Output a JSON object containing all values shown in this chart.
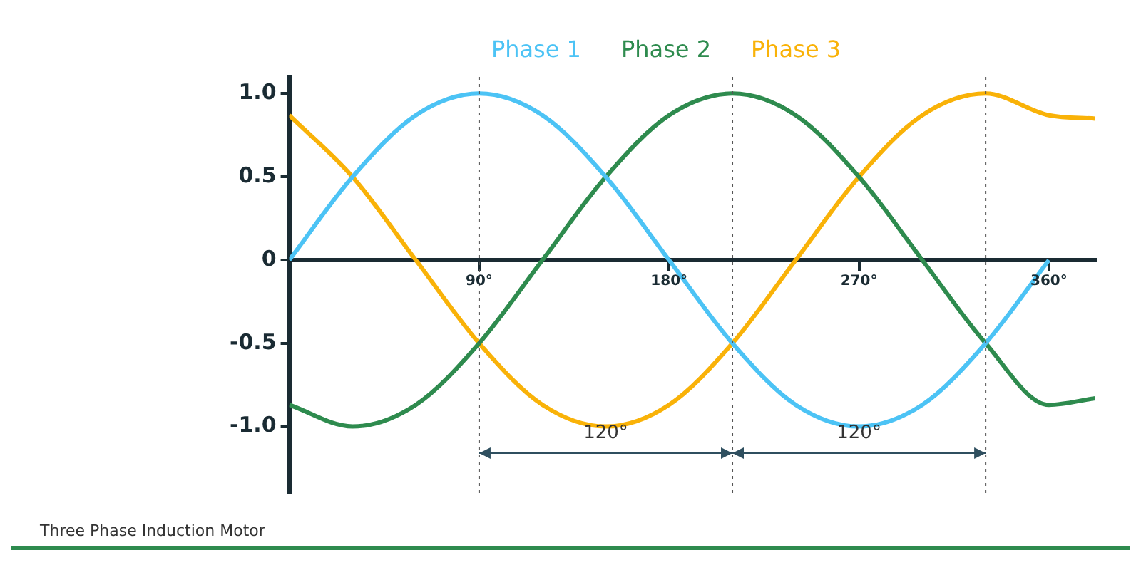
{
  "chart_data": {
    "type": "line",
    "x": [
      0,
      30,
      60,
      90,
      120,
      150,
      180,
      210,
      240,
      270,
      300,
      330,
      360
    ],
    "series": [
      {
        "name": "Phase 1",
        "color": "#4cc3f5",
        "values": [
          0,
          0.5,
          0.87,
          1,
          0.87,
          0.5,
          0,
          -0.5,
          -0.87,
          -1,
          -0.87,
          -0.5,
          0
        ]
      },
      {
        "name": "Phase 2",
        "color": "#2e8b4e",
        "x": [
          0,
          30,
          60,
          90,
          120,
          150,
          180,
          210,
          240,
          270,
          300,
          330,
          360,
          382
        ],
        "values": [
          -0.87,
          -1,
          -0.87,
          -0.5,
          0,
          0.5,
          0.87,
          1,
          0.87,
          0.5,
          0,
          -0.5,
          -0.87,
          -0.83
        ]
      },
      {
        "name": "Phase 3",
        "color": "#f9b208",
        "x": [
          0,
          30,
          60,
          90,
          120,
          150,
          180,
          210,
          240,
          270,
          300,
          330,
          360,
          382
        ],
        "values": [
          0.87,
          0.5,
          0,
          -0.5,
          -0.87,
          -1,
          -0.87,
          -0.5,
          0,
          0.5,
          0.87,
          1,
          0.87,
          0.85
        ]
      }
    ],
    "xlim": [
      0,
      382
    ],
    "ylim": [
      -1.4,
      1.1
    ],
    "xticks": [
      {
        "value": 90,
        "label": "90°"
      },
      {
        "value": 180,
        "label": "180°"
      },
      {
        "value": 270,
        "label": "270°"
      },
      {
        "value": 360,
        "label": "360°"
      }
    ],
    "yticks": [
      {
        "value": -1,
        "label": "-1.0"
      },
      {
        "value": -0.5,
        "label": "-0.5"
      },
      0,
      {
        "value": 0.5,
        "label": "0.5"
      },
      {
        "value": 1,
        "label": "1.0"
      }
    ],
    "ref_lines": [
      {
        "axis": "x",
        "value": 90,
        "line_style": "dotted",
        "color": "#555555"
      },
      {
        "axis": "x",
        "value": 210,
        "line_style": "dotted",
        "color": "#555555"
      },
      {
        "axis": "x",
        "value": 330,
        "line_style": "dotted",
        "color": "#555555"
      }
    ],
    "annotations": [
      "120°",
      "120°",
      "Three Phase Induction Motor"
    ],
    "grid": false,
    "legend": "top",
    "marker": "none",
    "line_style": "solid"
  }
}
